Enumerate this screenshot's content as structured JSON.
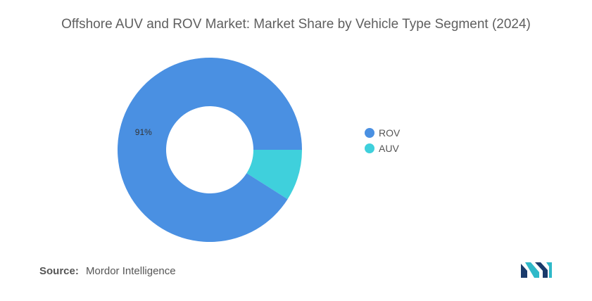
{
  "title": "Offshore AUV and ROV Market: Market Share by Vehicle Type Segment (2024)",
  "chart_data": {
    "type": "pie",
    "variant": "donut",
    "categories": [
      "ROV",
      "AUV"
    ],
    "values": [
      91,
      9
    ],
    "data_labels": [
      "91%",
      ""
    ],
    "colors": [
      "#4a90e2",
      "#3fd0dc"
    ],
    "legend_placement": "right"
  },
  "legend": {
    "items": [
      {
        "label": "ROV",
        "color": "#4a90e2"
      },
      {
        "label": "AUV",
        "color": "#3fd0dc"
      }
    ]
  },
  "source": {
    "label": "Source:",
    "text": "Mordor Intelligence"
  },
  "logo": {
    "icon": "mordor-intelligence-logo",
    "colors": [
      "#1a3a6b",
      "#2fb9c9"
    ]
  }
}
